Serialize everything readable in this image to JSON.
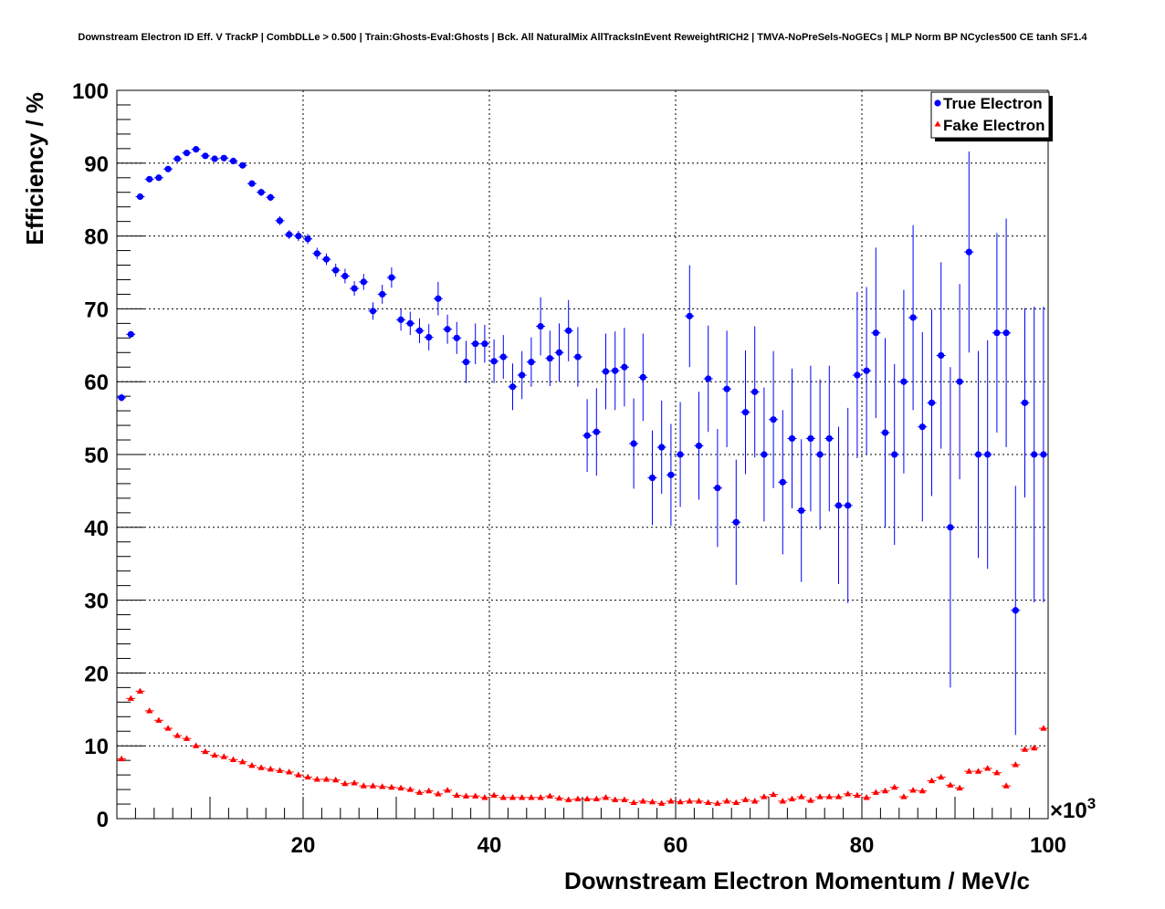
{
  "chart_data": {
    "type": "scatter",
    "title": "Downstream Electron ID Eff. V TrackP | CombDLLe > 0.500 | Train:Ghosts-Eval:Ghosts | Bck. All NaturalMix AllTracksInEvent ReweightRICH2 | TMVA-NoPreSels-NoGECs | MLP Norm BP NCycles500 CE tanh SF1.4",
    "xlabel": "Downstream Electron Momentum / MeV/c",
    "ylabel": "Efficiency / %",
    "x_multiplier_label": "×10",
    "x_multiplier_exp": "3",
    "xlim": [
      0,
      100
    ],
    "ylim": [
      0,
      100
    ],
    "x_ticks": [
      20,
      40,
      60,
      80,
      100
    ],
    "y_ticks": [
      0,
      10,
      20,
      30,
      40,
      50,
      60,
      70,
      80,
      90,
      100
    ],
    "grid": true,
    "legend_position": "top-right",
    "series": [
      {
        "name": "True Electron",
        "color": "#0000ff",
        "marker": "circle",
        "x": [
          0.5,
          1.5,
          2.5,
          3.5,
          4.5,
          5.5,
          6.5,
          7.5,
          8.5,
          9.5,
          10.5,
          11.5,
          12.5,
          13.5,
          14.5,
          15.5,
          16.5,
          17.5,
          18.5,
          19.5,
          20.5,
          21.5,
          22.5,
          23.5,
          24.5,
          25.5,
          26.5,
          27.5,
          28.5,
          29.5,
          30.5,
          31.5,
          32.5,
          33.5,
          34.5,
          35.5,
          36.5,
          37.5,
          38.5,
          39.5,
          40.5,
          41.5,
          42.5,
          43.5,
          44.5,
          45.5,
          46.5,
          47.5,
          48.5,
          49.5,
          50.5,
          51.5,
          52.5,
          53.5,
          54.5,
          55.5,
          56.5,
          57.5,
          58.5,
          59.5,
          60.5,
          61.5,
          62.5,
          63.5,
          64.5,
          65.5,
          66.5,
          67.5,
          68.5,
          69.5,
          70.5,
          71.5,
          72.5,
          73.5,
          74.5,
          75.5,
          76.5,
          77.5,
          78.5,
          79.5,
          80.5,
          81.5,
          82.5,
          83.5,
          84.5,
          85.5,
          86.5,
          87.5,
          88.5,
          89.5,
          90.5,
          91.5,
          92.5,
          93.5,
          94.5,
          95.5,
          96.5,
          97.5,
          98.5,
          99.5
        ],
        "y": [
          57.8,
          66.5,
          85.4,
          87.8,
          88.0,
          89.2,
          90.6,
          91.4,
          91.9,
          91.0,
          90.6,
          90.7,
          90.3,
          89.7,
          87.2,
          86.0,
          85.3,
          82.1,
          80.2,
          80.0,
          79.6,
          77.6,
          76.8,
          75.3,
          74.5,
          72.8,
          73.7,
          69.7,
          72.0,
          74.3,
          68.5,
          68.0,
          67.0,
          66.1,
          71.4,
          67.2,
          66.0,
          62.7,
          65.2,
          65.2,
          62.8,
          63.4,
          59.3,
          60.9,
          62.7,
          67.6,
          63.2,
          64.0,
          67.0,
          63.4,
          52.6,
          53.1,
          61.4,
          61.5,
          62.0,
          51.5,
          60.6,
          46.8,
          51.0,
          47.2,
          50.0,
          69.0,
          51.2,
          60.4,
          45.4,
          59.0,
          40.7,
          55.8,
          58.6,
          50.0,
          54.8,
          46.2,
          52.2,
          42.3,
          52.2,
          50.0,
          52.2,
          43.0,
          43.0,
          60.9,
          61.5,
          66.7,
          53.0,
          50.0,
          60.0,
          68.8,
          53.8,
          57.1,
          63.6,
          40.0,
          60.0,
          77.8,
          50.0,
          50.0,
          66.7,
          66.7,
          28.6,
          57.1,
          50.0,
          50.0
        ],
        "yerr": [
          0.5,
          0.4,
          0.3,
          0.3,
          0.3,
          0.3,
          0.3,
          0.3,
          0.3,
          0.3,
          0.3,
          0.3,
          0.4,
          0.4,
          0.4,
          0.5,
          0.5,
          0.6,
          0.6,
          0.7,
          0.7,
          0.8,
          0.8,
          0.9,
          1.0,
          1.0,
          1.1,
          1.2,
          1.3,
          1.4,
          1.5,
          1.6,
          1.7,
          1.8,
          2.3,
          2.0,
          2.2,
          2.9,
          2.8,
          2.6,
          3.0,
          3.0,
          3.2,
          3.3,
          3.4,
          4.0,
          3.8,
          4.0,
          4.2,
          4.1,
          5.0,
          6.0,
          5.2,
          5.4,
          5.4,
          6.2,
          6.0,
          6.5,
          6.4,
          7.0,
          7.2,
          7.0,
          7.4,
          7.3,
          8.1,
          8.0,
          8.6,
          8.5,
          9.0,
          9.2,
          9.4,
          9.9,
          9.6,
          9.8,
          10.0,
          10.3,
          10.0,
          10.8,
          13.4,
          11.4,
          11.5,
          11.7,
          13.0,
          12.4,
          12.6,
          12.7,
          13.0,
          12.8,
          12.8,
          22.0,
          13.4,
          13.8,
          14.2,
          15.7,
          13.7,
          15.7,
          17.1,
          13.0,
          20.3,
          20.3
        ]
      },
      {
        "name": "Fake Electron",
        "color": "#ff0000",
        "marker": "triangle",
        "x": [
          0.5,
          1.5,
          2.5,
          3.5,
          4.5,
          5.5,
          6.5,
          7.5,
          8.5,
          9.5,
          10.5,
          11.5,
          12.5,
          13.5,
          14.5,
          15.5,
          16.5,
          17.5,
          18.5,
          19.5,
          20.5,
          21.5,
          22.5,
          23.5,
          24.5,
          25.5,
          26.5,
          27.5,
          28.5,
          29.5,
          30.5,
          31.5,
          32.5,
          33.5,
          34.5,
          35.5,
          36.5,
          37.5,
          38.5,
          39.5,
          40.5,
          41.5,
          42.5,
          43.5,
          44.5,
          45.5,
          46.5,
          47.5,
          48.5,
          49.5,
          50.5,
          51.5,
          52.5,
          53.5,
          54.5,
          55.5,
          56.5,
          57.5,
          58.5,
          59.5,
          60.5,
          61.5,
          62.5,
          63.5,
          64.5,
          65.5,
          66.5,
          67.5,
          68.5,
          69.5,
          70.5,
          71.5,
          72.5,
          73.5,
          74.5,
          75.5,
          76.5,
          77.5,
          78.5,
          79.5,
          80.5,
          81.5,
          82.5,
          83.5,
          84.5,
          85.5,
          86.5,
          87.5,
          88.5,
          89.5,
          90.5,
          91.5,
          92.5,
          93.5,
          94.5,
          95.5,
          96.5,
          97.5,
          98.5,
          99.5
        ],
        "y": [
          8.2,
          16.5,
          17.5,
          14.8,
          13.5,
          12.4,
          11.4,
          11.0,
          10.0,
          9.2,
          8.7,
          8.5,
          8.1,
          7.8,
          7.3,
          7.0,
          6.8,
          6.6,
          6.4,
          6.0,
          5.7,
          5.4,
          5.4,
          5.3,
          4.8,
          4.9,
          4.5,
          4.5,
          4.4,
          4.3,
          4.2,
          4.0,
          3.6,
          3.8,
          3.4,
          3.9,
          3.2,
          3.1,
          3.1,
          2.9,
          3.2,
          2.9,
          2.9,
          2.9,
          2.9,
          2.9,
          3.1,
          2.8,
          2.6,
          2.7,
          2.7,
          2.7,
          2.9,
          2.6,
          2.6,
          2.2,
          2.4,
          2.3,
          2.1,
          2.4,
          2.3,
          2.4,
          2.4,
          2.2,
          2.1,
          2.4,
          2.2,
          2.6,
          2.4,
          3.0,
          3.3,
          2.4,
          2.7,
          3.0,
          2.5,
          3.0,
          3.0,
          3.0,
          3.4,
          3.2,
          2.9,
          3.6,
          3.8,
          4.3,
          3.0,
          3.9,
          3.8,
          5.2,
          5.7,
          4.6,
          4.2,
          6.5,
          6.5,
          6.9,
          6.3,
          4.5,
          7.4,
          9.5,
          9.7,
          12.4
        ]
      }
    ]
  }
}
